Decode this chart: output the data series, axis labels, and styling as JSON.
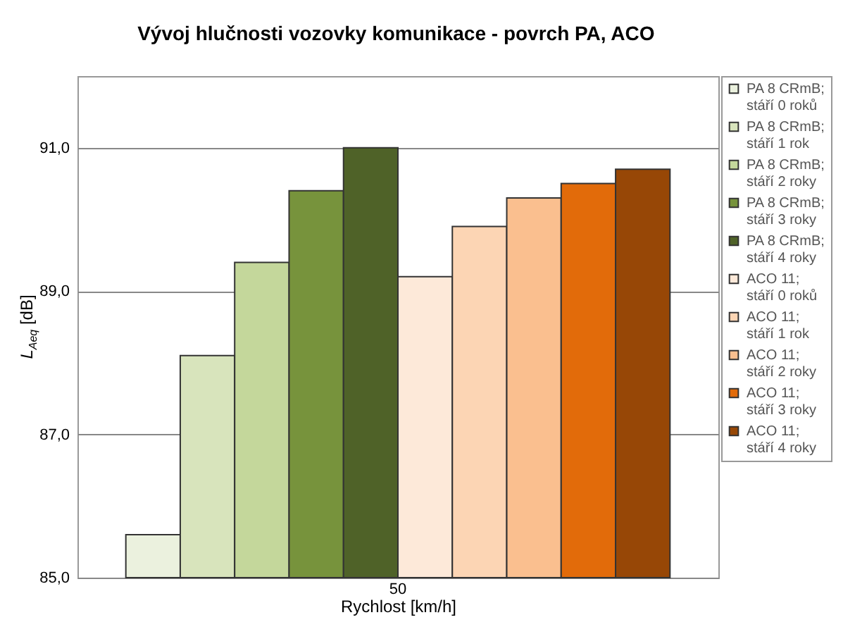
{
  "chart_data": {
    "type": "bar",
    "title": "Vývoj hlučnosti vozovky komunikace - povrch PA, ACO",
    "xlabel": "Rychlost [km/h]",
    "ylabel": "L$_{Aeq}$ [dB]",
    "categories": [
      "50"
    ],
    "series": [
      {
        "name": "PA 8 CRmB; stáří 0 roků",
        "color": "#ebf1de",
        "values": [
          85.6
        ]
      },
      {
        "name": "PA 8 CRmB; stáří 1 rok",
        "color": "#d8e4bc",
        "values": [
          88.1
        ]
      },
      {
        "name": "PA 8 CRmB; stáří 2 roky",
        "color": "#c4d79b",
        "values": [
          89.4
        ]
      },
      {
        "name": "PA 8 CRmB; stáří 3 roky",
        "color": "#77933c",
        "values": [
          90.4
        ]
      },
      {
        "name": "PA 8 CRmB; stáří 4 roky",
        "color": "#4f6228",
        "values": [
          91.0
        ]
      },
      {
        "name": "ACO 11; stáří 0 roků",
        "color": "#fde9d9",
        "values": [
          89.2
        ]
      },
      {
        "name": "ACO 11; stáří 1 rok",
        "color": "#fcd5b4",
        "values": [
          89.9
        ]
      },
      {
        "name": "ACO 11; stáří 2 roky",
        "color": "#fabf8f",
        "values": [
          90.3
        ]
      },
      {
        "name": "ACO 11; stáří 3 roky",
        "color": "#e26b0a",
        "values": [
          90.5
        ]
      },
      {
        "name": "ACO 11; stáří 4 roky",
        "color": "#974706",
        "values": [
          90.7
        ]
      }
    ],
    "ylim": [
      85,
      92
    ],
    "yticks": [
      {
        "value": 85,
        "label": "85,0"
      },
      {
        "value": 87,
        "label": "87,0"
      },
      {
        "value": 89,
        "label": "89,0"
      },
      {
        "value": 91,
        "label": "91,0"
      }
    ],
    "grid": "y",
    "legend": "right"
  }
}
